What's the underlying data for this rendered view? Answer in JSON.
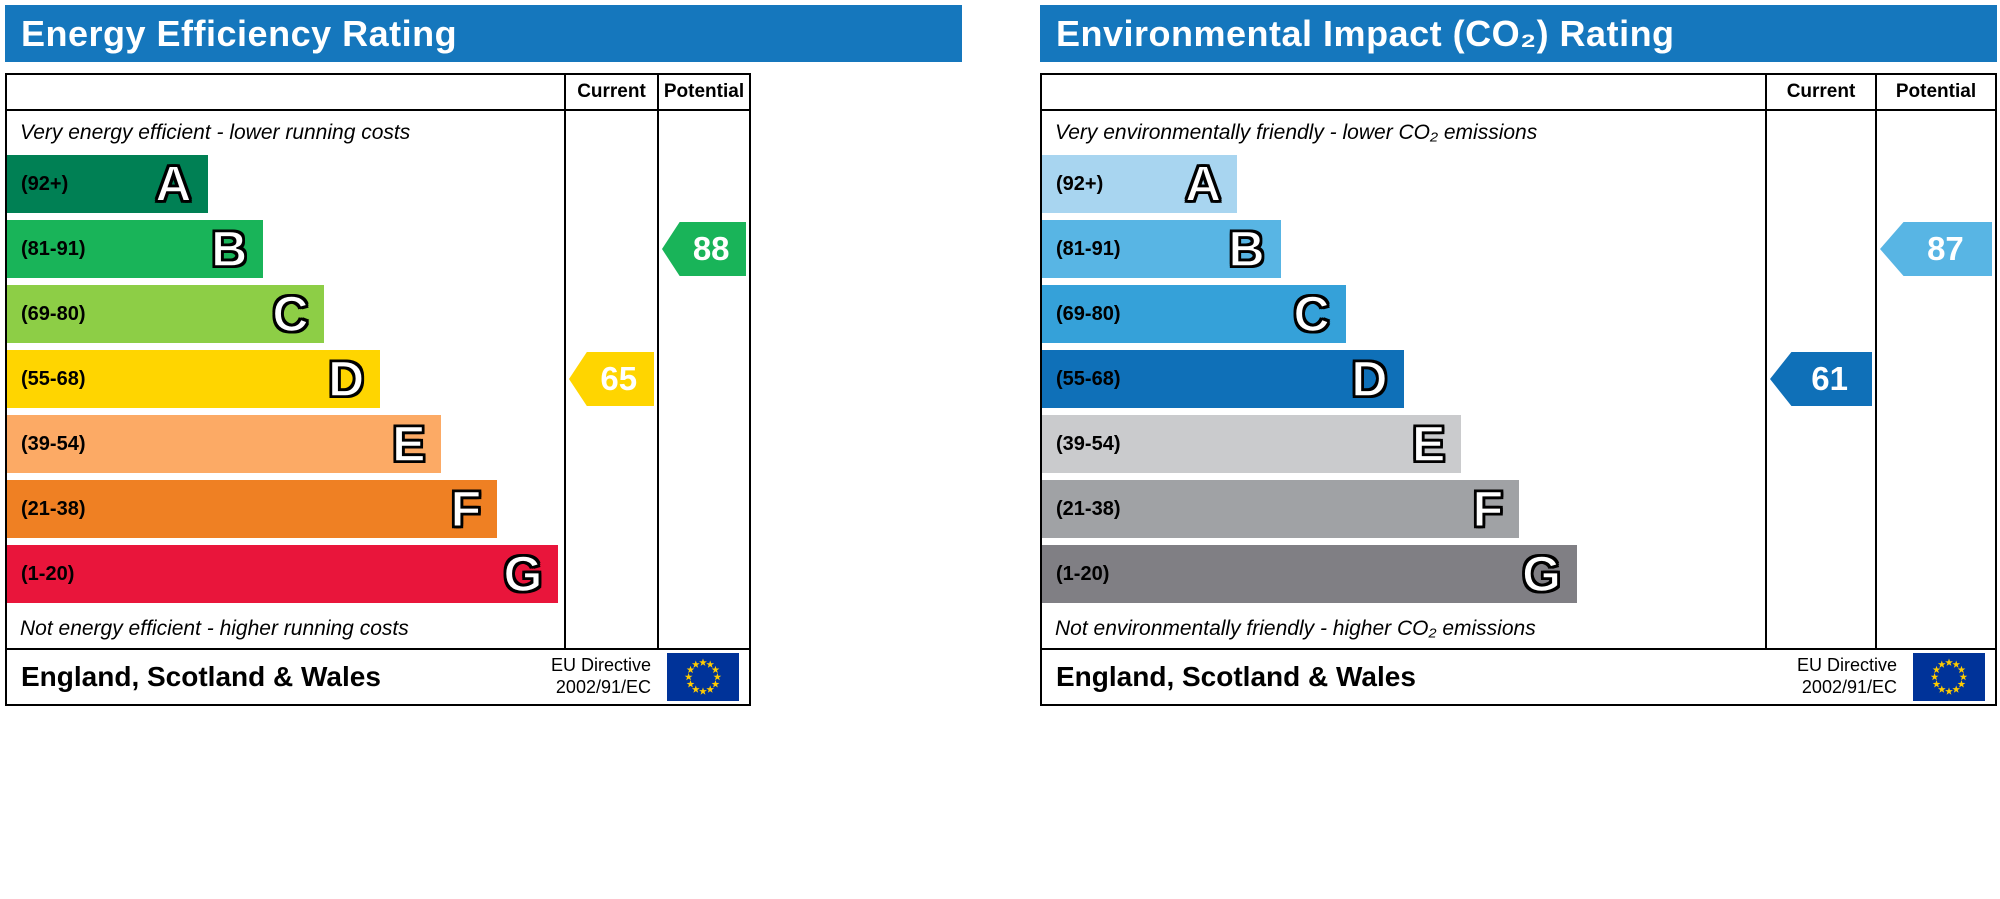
{
  "eu_flag": {
    "background": "#003399",
    "star_color": "#ffcc00"
  },
  "chart_data": [
    {
      "type": "bar",
      "title": "Energy Efficiency Rating",
      "header_color": "#1577bd",
      "columns": [
        "Current",
        "Potential"
      ],
      "top_note": "Very energy efficient - lower running costs",
      "bottom_note": "Not energy efficient - higher running costs",
      "bands": [
        {
          "letter": "A",
          "range": "(92+)",
          "min": 92,
          "max": 100,
          "color": "#008054",
          "width_pct": 36
        },
        {
          "letter": "B",
          "range": "(81-91)",
          "min": 81,
          "max": 91,
          "color": "#19b459",
          "width_pct": 46
        },
        {
          "letter": "C",
          "range": "(69-80)",
          "min": 69,
          "max": 80,
          "color": "#8dce46",
          "width_pct": 57
        },
        {
          "letter": "D",
          "range": "(55-68)",
          "min": 55,
          "max": 68,
          "color": "#ffd500",
          "width_pct": 67
        },
        {
          "letter": "E",
          "range": "(39-54)",
          "min": 39,
          "max": 54,
          "color": "#fcaa65",
          "width_pct": 78
        },
        {
          "letter": "F",
          "range": "(21-38)",
          "min": 21,
          "max": 38,
          "color": "#ef8023",
          "width_pct": 88
        },
        {
          "letter": "G",
          "range": "(1-20)",
          "min": 1,
          "max": 20,
          "color": "#e9153b",
          "width_pct": 99
        }
      ],
      "current": {
        "value": 65,
        "band": "D",
        "band_index": 3,
        "color": "#ffd500"
      },
      "potential": {
        "value": 88,
        "band": "B",
        "band_index": 1,
        "color": "#19b459"
      },
      "footer": {
        "region": "England, Scotland & Wales",
        "directive_line1": "EU Directive",
        "directive_line2": "2002/91/EC"
      }
    },
    {
      "type": "bar",
      "title": "Environmental Impact (CO₂) Rating",
      "header_color": "#1577bd",
      "columns": [
        "Current",
        "Potential"
      ],
      "top_note": "Very environmentally friendly - lower CO₂ emissions",
      "bottom_note": "Not environmentally friendly - higher CO₂ emissions",
      "bands": [
        {
          "letter": "A",
          "range": "(92+)",
          "min": 92,
          "max": 100,
          "color": "#a8d5f0",
          "width_pct": 27
        },
        {
          "letter": "B",
          "range": "(81-91)",
          "min": 81,
          "max": 91,
          "color": "#58b5e4",
          "width_pct": 33
        },
        {
          "letter": "C",
          "range": "(69-80)",
          "min": 69,
          "max": 80,
          "color": "#35a1d9",
          "width_pct": 42
        },
        {
          "letter": "D",
          "range": "(55-68)",
          "min": 55,
          "max": 68,
          "color": "#0f70b8",
          "width_pct": 50
        },
        {
          "letter": "E",
          "range": "(39-54)",
          "min": 39,
          "max": 54,
          "color": "#cacbcd",
          "width_pct": 58
        },
        {
          "letter": "F",
          "range": "(21-38)",
          "min": 21,
          "max": 38,
          "color": "#a0a2a5",
          "width_pct": 66
        },
        {
          "letter": "G",
          "range": "(1-20)",
          "min": 1,
          "max": 20,
          "color": "#807f84",
          "width_pct": 74
        }
      ],
      "current": {
        "value": 61,
        "band": "D",
        "band_index": 3,
        "color": "#0f70b8"
      },
      "potential": {
        "value": 87,
        "band": "B",
        "band_index": 1,
        "color": "#58b5e4"
      },
      "footer": {
        "region": "England, Scotland & Wales",
        "directive_line1": "EU Directive",
        "directive_line2": "2002/91/EC"
      }
    }
  ]
}
